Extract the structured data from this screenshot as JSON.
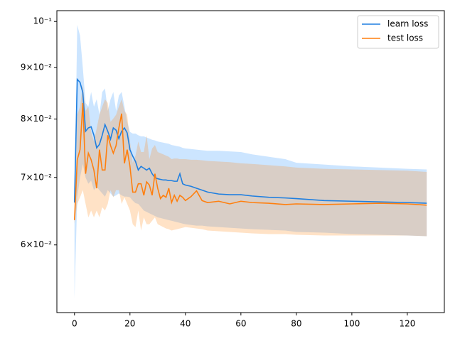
{
  "chart_data": {
    "type": "line",
    "log_y": true,
    "legend": "upper right",
    "xlim": [
      -6.35,
      133.35
    ],
    "ylim": [
      0.0514,
      0.1025
    ],
    "xticks": [
      0,
      20,
      40,
      60,
      80,
      100,
      120
    ],
    "yticks": [
      {
        "value": 0.06,
        "label": "6×10⁻²"
      },
      {
        "value": 0.07,
        "label": "7×10⁻²"
      },
      {
        "value": 0.08,
        "label": "8×10⁻²"
      },
      {
        "value": 0.09,
        "label": "9×10⁻²"
      },
      {
        "value": 0.1,
        "label": "10⁻¹"
      }
    ],
    "x": [
      0,
      1,
      2,
      3,
      4,
      5,
      6,
      7,
      8,
      9,
      10,
      11,
      12,
      13,
      14,
      15,
      16,
      17,
      18,
      19,
      20,
      21,
      22,
      23,
      24,
      25,
      26,
      27,
      28,
      29,
      30,
      31,
      32,
      33,
      34,
      35,
      36,
      37,
      38,
      39,
      40,
      42,
      44,
      46,
      48,
      52,
      56,
      60,
      64,
      70,
      76,
      80,
      90,
      100,
      110,
      120,
      127
    ],
    "series": [
      {
        "name": "learn loss",
        "color": "#1f7fe0",
        "band_color": "#3399ff",
        "values": [
          0.0661,
          0.0876,
          0.087,
          0.085,
          0.0778,
          0.0784,
          0.0786,
          0.0771,
          0.0749,
          0.0755,
          0.0771,
          0.079,
          0.0778,
          0.0764,
          0.0784,
          0.078,
          0.0765,
          0.0778,
          0.0784,
          0.0775,
          0.0746,
          0.0735,
          0.0726,
          0.0712,
          0.0718,
          0.0715,
          0.0712,
          0.0715,
          0.0706,
          0.07,
          0.0698,
          0.0697,
          0.0696,
          0.0696,
          0.0695,
          0.0695,
          0.0694,
          0.0694,
          0.0706,
          0.069,
          0.0688,
          0.0686,
          0.0683,
          0.068,
          0.0677,
          0.0674,
          0.0673,
          0.0673,
          0.0671,
          0.0669,
          0.0668,
          0.0667,
          0.0664,
          0.0663,
          0.0662,
          0.0661,
          0.066
        ],
        "upper": [
          0.0665,
          0.0992,
          0.0968,
          0.09,
          0.083,
          0.0823,
          0.0851,
          0.0823,
          0.0837,
          0.0808,
          0.0851,
          0.0858,
          0.0815,
          0.0837,
          0.0851,
          0.0815,
          0.0844,
          0.0851,
          0.0823,
          0.0795,
          0.0777,
          0.0774,
          0.0774,
          0.0771,
          0.0769,
          0.0769,
          0.0767,
          0.0765,
          0.0763,
          0.0762,
          0.076,
          0.0759,
          0.0758,
          0.0757,
          0.0756,
          0.0754,
          0.0753,
          0.0752,
          0.0751,
          0.0749,
          0.0748,
          0.0747,
          0.0746,
          0.0745,
          0.0744,
          0.0744,
          0.0743,
          0.0742,
          0.0738,
          0.0734,
          0.073,
          0.0724,
          0.0721,
          0.0718,
          0.0716,
          0.0714,
          0.0713
        ],
        "lower": [
          0.0531,
          0.0669,
          0.07,
          0.0722,
          0.07,
          0.069,
          0.0695,
          0.068,
          0.0685,
          0.068,
          0.0675,
          0.067,
          0.068,
          0.0675,
          0.067,
          0.0672,
          0.0675,
          0.0672,
          0.067,
          0.067,
          0.0669,
          0.0664,
          0.066,
          0.0659,
          0.0654,
          0.0649,
          0.0647,
          0.0645,
          0.0643,
          0.0641,
          0.0639,
          0.0638,
          0.0637,
          0.0636,
          0.0635,
          0.0634,
          0.0633,
          0.0632,
          0.0631,
          0.063,
          0.0629,
          0.0628,
          0.0627,
          0.0627,
          0.0626,
          0.0625,
          0.0624,
          0.0623,
          0.0622,
          0.0621,
          0.062,
          0.0618,
          0.0617,
          0.0615,
          0.0614,
          0.0613,
          0.0612
        ]
      },
      {
        "name": "test loss",
        "color": "#ff7f0e",
        "band_color": "#ff8c1a",
        "values": [
          0.0635,
          0.0729,
          0.0746,
          0.083,
          0.0706,
          0.074,
          0.0729,
          0.0712,
          0.0683,
          0.0746,
          0.0712,
          0.0712,
          0.0771,
          0.0753,
          0.074,
          0.0753,
          0.0784,
          0.081,
          0.0723,
          0.0746,
          0.0718,
          0.0677,
          0.0677,
          0.069,
          0.069,
          0.0672,
          0.0693,
          0.0688,
          0.0672,
          0.0706,
          0.0683,
          0.0667,
          0.0672,
          0.0669,
          0.0683,
          0.0661,
          0.0672,
          0.0663,
          0.0672,
          0.0669,
          0.0664,
          0.067,
          0.0679,
          0.0664,
          0.0661,
          0.0663,
          0.0659,
          0.0663,
          0.0661,
          0.066,
          0.0658,
          0.0659,
          0.0658,
          0.0659,
          0.066,
          0.0659,
          0.0657
        ],
        "upper": [
          0.064,
          0.0808,
          0.0823,
          0.0865,
          0.0815,
          0.0823,
          0.0777,
          0.076,
          0.0783,
          0.0808,
          0.0823,
          0.0837,
          0.083,
          0.0795,
          0.0801,
          0.0808,
          0.0823,
          0.0837,
          0.0815,
          0.0808,
          0.076,
          0.0724,
          0.0736,
          0.076,
          0.0742,
          0.0742,
          0.0771,
          0.073,
          0.0748,
          0.0754,
          0.0742,
          0.074,
          0.0738,
          0.0736,
          0.0734,
          0.073,
          0.0731,
          0.0731,
          0.073,
          0.073,
          0.073,
          0.0729,
          0.0729,
          0.0728,
          0.0727,
          0.0726,
          0.0725,
          0.0723,
          0.0722,
          0.072,
          0.0718,
          0.0716,
          0.0714,
          0.0713,
          0.0712,
          0.0711,
          0.0709
        ],
        "lower": [
          0.063,
          0.0659,
          0.0669,
          0.068,
          0.0659,
          0.0639,
          0.0649,
          0.0639,
          0.0649,
          0.0639,
          0.0654,
          0.0649,
          0.0659,
          0.068,
          0.0669,
          0.068,
          0.068,
          0.0659,
          0.0669,
          0.0659,
          0.0649,
          0.0629,
          0.0625,
          0.0649,
          0.062,
          0.0639,
          0.0629,
          0.0629,
          0.0634,
          0.0639,
          0.0629,
          0.0627,
          0.0625,
          0.0623,
          0.0622,
          0.062,
          0.0621,
          0.0622,
          0.0623,
          0.0624,
          0.0625,
          0.0624,
          0.0623,
          0.0622,
          0.062,
          0.0619,
          0.0618,
          0.0617,
          0.0616,
          0.0615,
          0.0615,
          0.0614,
          0.0613,
          0.0613,
          0.0613,
          0.0613,
          0.0612
        ]
      }
    ]
  }
}
